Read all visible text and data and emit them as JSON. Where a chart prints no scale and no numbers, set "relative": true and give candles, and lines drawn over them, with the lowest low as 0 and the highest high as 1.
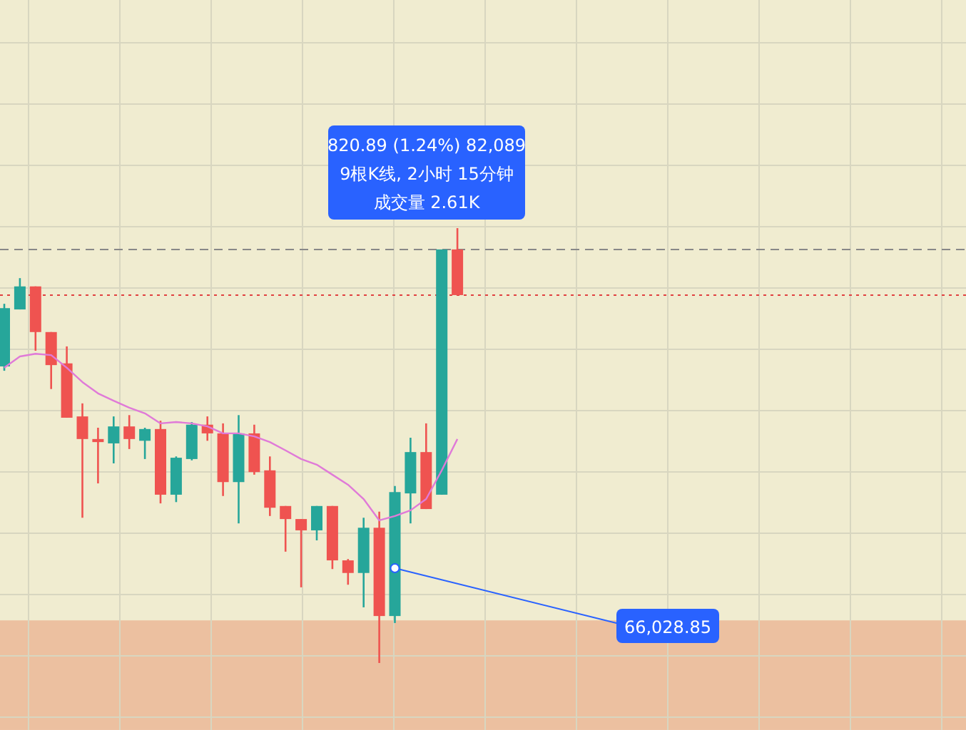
{
  "chart_data": {
    "type": "candlestick",
    "relative": true,
    "grid": true,
    "categories": [
      null,
      null,
      null,
      null,
      null,
      null,
      null,
      null,
      null,
      null,
      null,
      null,
      null,
      null,
      null,
      null,
      null,
      null,
      null,
      null,
      null,
      null,
      null,
      null,
      null,
      null,
      null,
      null,
      null,
      null
    ],
    "ohlc": [
      [
        0.682,
        0.826,
        0.672,
        0.816
      ],
      [
        0.813,
        0.885,
        0.813,
        0.866
      ],
      [
        0.866,
        0.866,
        0.718,
        0.761
      ],
      [
        0.761,
        0.761,
        0.63,
        0.685
      ],
      [
        0.689,
        0.728,
        0.564,
        0.564
      ],
      [
        0.567,
        0.597,
        0.334,
        0.515
      ],
      [
        0.515,
        0.541,
        0.413,
        0.508
      ],
      [
        0.505,
        0.567,
        0.459,
        0.544
      ],
      [
        0.544,
        0.57,
        0.492,
        0.515
      ],
      [
        0.511,
        0.541,
        0.469,
        0.538
      ],
      [
        0.538,
        0.557,
        0.367,
        0.387
      ],
      [
        0.387,
        0.475,
        0.37,
        0.472
      ],
      [
        0.469,
        0.554,
        0.466,
        0.548
      ],
      [
        0.548,
        0.567,
        0.511,
        0.528
      ],
      [
        0.528,
        0.551,
        0.384,
        0.416
      ],
      [
        0.416,
        0.57,
        0.321,
        0.528
      ],
      [
        0.528,
        0.548,
        0.433,
        0.439
      ],
      [
        0.443,
        0.475,
        0.338,
        0.357
      ],
      [
        0.361,
        0.361,
        0.256,
        0.331
      ],
      [
        0.331,
        0.331,
        0.174,
        0.305
      ],
      [
        0.305,
        0.361,
        0.282,
        0.361
      ],
      [
        0.361,
        0.361,
        0.216,
        0.236
      ],
      [
        0.236,
        0.239,
        0.18,
        0.207
      ],
      [
        0.207,
        0.334,
        0.128,
        0.311
      ],
      [
        0.311,
        0.348,
        0.0,
        0.108
      ],
      [
        0.108,
        0.407,
        0.092,
        0.393
      ],
      [
        0.39,
        0.518,
        0.321,
        0.485
      ],
      [
        0.485,
        0.551,
        0.354,
        0.354
      ],
      [
        0.387,
        0.951,
        0.387,
        0.951
      ],
      [
        0.951,
        1.0,
        0.846,
        0.846
      ]
    ],
    "series": [
      {
        "type": "line",
        "color": "#e07ad8",
        "values": [
          0.679,
          0.705,
          0.711,
          0.708,
          0.679,
          0.646,
          0.62,
          0.603,
          0.587,
          0.574,
          0.551,
          0.554,
          0.551,
          0.544,
          0.528,
          0.528,
          0.521,
          0.508,
          0.489,
          0.469,
          0.456,
          0.433,
          0.41,
          0.377,
          0.328,
          0.338,
          0.351,
          0.377,
          0.443,
          0.515
        ]
      }
    ],
    "ref_lines": [
      {
        "axis": "y",
        "value": 0.951,
        "color": "#888888",
        "line_style": "dashed"
      },
      {
        "axis": "y",
        "value": 0.846,
        "color": "#e04040",
        "line_style": "dotted"
      }
    ],
    "bands": [
      {
        "axis": "y",
        "from": -0.154,
        "to": 0.098,
        "color": "#ecc0a0"
      }
    ],
    "annotations": [
      "820.89 (1.24%) 82,089",
      "9根K线, 2小时 15分钟",
      "成交量 2.61K",
      "66,028.85"
    ]
  }
}
